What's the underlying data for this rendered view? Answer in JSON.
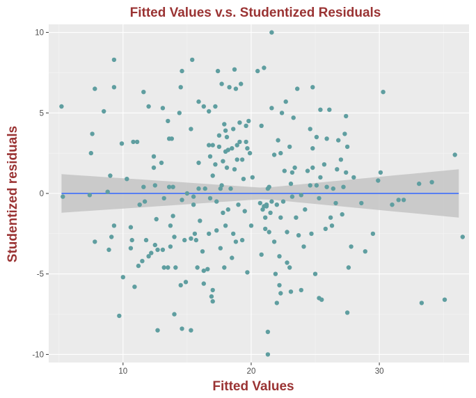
{
  "chart_data": {
    "type": "scatter",
    "title": "Fitted Values v.s. Studentized Residuals",
    "xlabel": "Fitted Values",
    "ylabel": "Studentized residuals",
    "xlim": [
      4.2,
      37.0
    ],
    "ylim": [
      -10.5,
      10.5
    ],
    "x_ticks": [
      10,
      20,
      30
    ],
    "y_ticks": [
      -10,
      -5,
      0,
      5,
      10
    ],
    "x_tick_labels": [
      "10",
      "20",
      "30"
    ],
    "y_tick_labels": [
      "-10",
      "-5",
      "0",
      "5",
      "10"
    ],
    "grid": true,
    "legend": "none",
    "colors": {
      "panel_bg": "#ebebeb",
      "grid_major": "#ffffff",
      "grid_minor": "#f5f5f5",
      "points": "#5f9ea0",
      "fit_line": "#3366ff",
      "ribbon": "#c4c4c4",
      "title": "#9a3333",
      "tick_text": "#4d4d4d"
    },
    "fit_line": {
      "x": [
        5.2,
        36.2
      ],
      "y": [
        0,
        0
      ]
    },
    "confidence_band": {
      "x": [
        5.2,
        21,
        36.2
      ],
      "upper": [
        1.2,
        0.35,
        1.5
      ],
      "lower": [
        -1.2,
        -0.35,
        -1.5
      ]
    },
    "points": [
      {
        "x": 5.2,
        "y": 5.4
      },
      {
        "x": 5.3,
        "y": -0.2
      },
      {
        "x": 7.4,
        "y": -0.1
      },
      {
        "x": 7.5,
        "y": 2.5
      },
      {
        "x": 7.6,
        "y": 3.7
      },
      {
        "x": 7.8,
        "y": 6.5
      },
      {
        "x": 7.8,
        "y": -3.0
      },
      {
        "x": 8.5,
        "y": 5.1
      },
      {
        "x": 8.8,
        "y": 0.1
      },
      {
        "x": 9.0,
        "y": 1.1
      },
      {
        "x": 8.9,
        "y": -3.5
      },
      {
        "x": 9.1,
        "y": -2.7
      },
      {
        "x": 9.3,
        "y": -2.0
      },
      {
        "x": 9.3,
        "y": 6.6
      },
      {
        "x": 9.3,
        "y": 8.3
      },
      {
        "x": 9.7,
        "y": -7.6
      },
      {
        "x": 9.9,
        "y": 3.1
      },
      {
        "x": 10.0,
        "y": -5.2
      },
      {
        "x": 10.3,
        "y": 0.9
      },
      {
        "x": 10.6,
        "y": -2.1
      },
      {
        "x": 10.6,
        "y": -3.4
      },
      {
        "x": 10.7,
        "y": -2.9
      },
      {
        "x": 10.8,
        "y": 3.2
      },
      {
        "x": 10.9,
        "y": -5.8
      },
      {
        "x": 11.1,
        "y": 3.2
      },
      {
        "x": 11.2,
        "y": -4.5
      },
      {
        "x": 11.3,
        "y": -0.7
      },
      {
        "x": 11.5,
        "y": -4.2
      },
      {
        "x": 11.6,
        "y": 6.3
      },
      {
        "x": 11.6,
        "y": 0.4
      },
      {
        "x": 11.7,
        "y": -0.5
      },
      {
        "x": 11.8,
        "y": -2.9
      },
      {
        "x": 12.0,
        "y": 5.4
      },
      {
        "x": 12.0,
        "y": -3.9
      },
      {
        "x": 12.2,
        "y": -3.7
      },
      {
        "x": 12.4,
        "y": 2.3
      },
      {
        "x": 12.4,
        "y": 1.6
      },
      {
        "x": 12.5,
        "y": -3.2
      },
      {
        "x": 12.5,
        "y": 0.5
      },
      {
        "x": 12.6,
        "y": -1.6
      },
      {
        "x": 12.7,
        "y": -3.5
      },
      {
        "x": 12.7,
        "y": -8.5
      },
      {
        "x": 13.0,
        "y": 1.9
      },
      {
        "x": 13.1,
        "y": 5.3
      },
      {
        "x": 13.1,
        "y": -3.5
      },
      {
        "x": 13.2,
        "y": -4.6
      },
      {
        "x": 13.2,
        "y": -0.3
      },
      {
        "x": 13.5,
        "y": 4.5
      },
      {
        "x": 13.5,
        "y": -4.6
      },
      {
        "x": 13.6,
        "y": 3.4
      },
      {
        "x": 13.6,
        "y": 0.4
      },
      {
        "x": 13.7,
        "y": -3.3
      },
      {
        "x": 13.7,
        "y": -2.0
      },
      {
        "x": 13.8,
        "y": 3.4
      },
      {
        "x": 13.9,
        "y": -1.4
      },
      {
        "x": 13.9,
        "y": 0.4
      },
      {
        "x": 14.0,
        "y": -2.7
      },
      {
        "x": 14.0,
        "y": -7.5
      },
      {
        "x": 14.1,
        "y": -4.6
      },
      {
        "x": 14.4,
        "y": 5.0
      },
      {
        "x": 14.5,
        "y": 6.6
      },
      {
        "x": 14.5,
        "y": -5.7
      },
      {
        "x": 14.6,
        "y": 7.6
      },
      {
        "x": 14.6,
        "y": -0.4
      },
      {
        "x": 14.6,
        "y": -8.4
      },
      {
        "x": 14.8,
        "y": -2.9
      },
      {
        "x": 14.9,
        "y": -5.5
      },
      {
        "x": 15.0,
        "y": 0.0
      },
      {
        "x": 15.3,
        "y": 4.0
      },
      {
        "x": 15.3,
        "y": -2.8
      },
      {
        "x": 15.3,
        "y": -8.5
      },
      {
        "x": 15.4,
        "y": 8.3
      },
      {
        "x": 15.5,
        "y": -0.2
      },
      {
        "x": 15.5,
        "y": -0.7
      },
      {
        "x": 15.6,
        "y": -2.5
      },
      {
        "x": 15.7,
        "y": -2.9
      },
      {
        "x": 15.8,
        "y": -4.6
      },
      {
        "x": 15.9,
        "y": 0.3
      },
      {
        "x": 15.9,
        "y": 1.9
      },
      {
        "x": 15.9,
        "y": 5.7
      },
      {
        "x": 16.0,
        "y": -1.7
      },
      {
        "x": 16.2,
        "y": -3.6
      },
      {
        "x": 16.3,
        "y": -4.8
      },
      {
        "x": 16.3,
        "y": -5.6
      },
      {
        "x": 16.3,
        "y": 5.4
      },
      {
        "x": 16.4,
        "y": 0.3
      },
      {
        "x": 16.6,
        "y": -4.7
      },
      {
        "x": 16.7,
        "y": 5.1
      },
      {
        "x": 16.7,
        "y": -2.5
      },
      {
        "x": 16.7,
        "y": 3.0
      },
      {
        "x": 16.8,
        "y": 2.3
      },
      {
        "x": 16.8,
        "y": -0.3
      },
      {
        "x": 16.9,
        "y": -6.4
      },
      {
        "x": 17.0,
        "y": -6.7
      },
      {
        "x": 17.0,
        "y": -6.0
      },
      {
        "x": 17.0,
        "y": 1.1
      },
      {
        "x": 17.0,
        "y": 3.0
      },
      {
        "x": 17.2,
        "y": 1.8
      },
      {
        "x": 17.2,
        "y": 5.4
      },
      {
        "x": 17.3,
        "y": -0.5
      },
      {
        "x": 17.3,
        "y": -2.3
      },
      {
        "x": 17.4,
        "y": 7.6
      },
      {
        "x": 17.5,
        "y": 2.9
      },
      {
        "x": 17.5,
        "y": 3.6
      },
      {
        "x": 17.6,
        "y": -3.4
      },
      {
        "x": 17.6,
        "y": 0.3
      },
      {
        "x": 17.7,
        "y": 6.8
      },
      {
        "x": 17.7,
        "y": 0.5
      },
      {
        "x": 17.8,
        "y": 2.0
      },
      {
        "x": 17.8,
        "y": -1.2
      },
      {
        "x": 17.9,
        "y": 4.3
      },
      {
        "x": 17.9,
        "y": -4.6
      },
      {
        "x": 18.0,
        "y": -2.0
      },
      {
        "x": 18.0,
        "y": 3.9
      },
      {
        "x": 18.0,
        "y": 2.6
      },
      {
        "x": 18.1,
        "y": 1.6
      },
      {
        "x": 18.1,
        "y": 3.5
      },
      {
        "x": 18.2,
        "y": -1.0
      },
      {
        "x": 18.2,
        "y": 2.7
      },
      {
        "x": 18.3,
        "y": 6.6
      },
      {
        "x": 18.4,
        "y": 0.3
      },
      {
        "x": 18.5,
        "y": -4.0
      },
      {
        "x": 18.5,
        "y": 2.8
      },
      {
        "x": 18.6,
        "y": -2.5
      },
      {
        "x": 18.6,
        "y": 4.0
      },
      {
        "x": 18.7,
        "y": 7.7
      },
      {
        "x": 18.7,
        "y": 1.5
      },
      {
        "x": 18.8,
        "y": -3.0
      },
      {
        "x": 18.8,
        "y": 6.5
      },
      {
        "x": 18.9,
        "y": 3.0
      },
      {
        "x": 18.9,
        "y": 2.1
      },
      {
        "x": 19.0,
        "y": -0.7
      },
      {
        "x": 19.1,
        "y": 3.2
      },
      {
        "x": 19.1,
        "y": 4.4
      },
      {
        "x": 19.2,
        "y": 6.8
      },
      {
        "x": 19.3,
        "y": -2.9
      },
      {
        "x": 19.3,
        "y": 2.1
      },
      {
        "x": 19.4,
        "y": 0.9
      },
      {
        "x": 19.5,
        "y": -1.1
      },
      {
        "x": 19.6,
        "y": 4.2
      },
      {
        "x": 19.6,
        "y": 3.2
      },
      {
        "x": 19.7,
        "y": -4.9
      },
      {
        "x": 19.7,
        "y": 2.8
      },
      {
        "x": 19.8,
        "y": 4.5
      },
      {
        "x": 19.9,
        "y": 2.5
      },
      {
        "x": 20.0,
        "y": -2.0
      },
      {
        "x": 20.1,
        "y": 1.0
      },
      {
        "x": 20.5,
        "y": 7.6
      },
      {
        "x": 20.7,
        "y": -0.6
      },
      {
        "x": 20.8,
        "y": -3.8
      },
      {
        "x": 20.8,
        "y": 4.2
      },
      {
        "x": 20.9,
        "y": -1.0
      },
      {
        "x": 21.0,
        "y": 7.8
      },
      {
        "x": 21.0,
        "y": -0.8
      },
      {
        "x": 21.1,
        "y": -1.5
      },
      {
        "x": 21.1,
        "y": -2.2
      },
      {
        "x": 21.2,
        "y": -0.8
      },
      {
        "x": 21.2,
        "y": -0.7
      },
      {
        "x": 21.3,
        "y": 0.3
      },
      {
        "x": 21.3,
        "y": -8.6
      },
      {
        "x": 21.3,
        "y": -10.0
      },
      {
        "x": 21.4,
        "y": 0.4
      },
      {
        "x": 21.4,
        "y": -2.4
      },
      {
        "x": 21.5,
        "y": -1.2
      },
      {
        "x": 21.6,
        "y": 10.0
      },
      {
        "x": 21.6,
        "y": 5.3
      },
      {
        "x": 21.6,
        "y": -0.5
      },
      {
        "x": 21.8,
        "y": -3.0
      },
      {
        "x": 21.8,
        "y": 2.4
      },
      {
        "x": 21.9,
        "y": -5.0
      },
      {
        "x": 22.0,
        "y": -0.7
      },
      {
        "x": 22.0,
        "y": -6.8
      },
      {
        "x": 22.1,
        "y": 3.3
      },
      {
        "x": 22.2,
        "y": -5.7
      },
      {
        "x": 22.2,
        "y": -3.9
      },
      {
        "x": 22.3,
        "y": -6.2
      },
      {
        "x": 22.3,
        "y": 2.5
      },
      {
        "x": 22.3,
        "y": -1.5
      },
      {
        "x": 22.4,
        "y": 5.0
      },
      {
        "x": 22.5,
        "y": -0.5
      },
      {
        "x": 22.6,
        "y": 1.4
      },
      {
        "x": 22.7,
        "y": 5.7
      },
      {
        "x": 22.8,
        "y": -4.3
      },
      {
        "x": 22.8,
        "y": -2.4
      },
      {
        "x": 23.0,
        "y": 2.9
      },
      {
        "x": 23.0,
        "y": -4.6
      },
      {
        "x": 23.1,
        "y": -6.1
      },
      {
        "x": 23.1,
        "y": 0.6
      },
      {
        "x": 23.2,
        "y": 1.3
      },
      {
        "x": 23.2,
        "y": -0.2
      },
      {
        "x": 23.3,
        "y": 4.7
      },
      {
        "x": 23.4,
        "y": 1.6
      },
      {
        "x": 23.5,
        "y": -1.5
      },
      {
        "x": 23.6,
        "y": 6.5
      },
      {
        "x": 23.7,
        "y": -2.6
      },
      {
        "x": 23.9,
        "y": -0.1
      },
      {
        "x": 23.9,
        "y": -6.0
      },
      {
        "x": 24.1,
        "y": -3.3
      },
      {
        "x": 24.2,
        "y": -1.0
      },
      {
        "x": 24.4,
        "y": 1.4
      },
      {
        "x": 24.6,
        "y": 4.0
      },
      {
        "x": 24.6,
        "y": 0.5
      },
      {
        "x": 24.7,
        "y": -2.5
      },
      {
        "x": 24.8,
        "y": 6.6
      },
      {
        "x": 24.8,
        "y": 1.6
      },
      {
        "x": 24.8,
        "y": 2.8
      },
      {
        "x": 25.0,
        "y": -5.0
      },
      {
        "x": 25.1,
        "y": 3.5
      },
      {
        "x": 25.1,
        "y": 0.5
      },
      {
        "x": 25.3,
        "y": -0.3
      },
      {
        "x": 25.3,
        "y": -6.5
      },
      {
        "x": 25.4,
        "y": 5.2
      },
      {
        "x": 25.4,
        "y": 1.0
      },
      {
        "x": 25.5,
        "y": -6.6
      },
      {
        "x": 25.7,
        "y": 1.8
      },
      {
        "x": 25.8,
        "y": -2.2
      },
      {
        "x": 25.9,
        "y": 0.4
      },
      {
        "x": 25.9,
        "y": 3.4
      },
      {
        "x": 26.1,
        "y": 5.2
      },
      {
        "x": 26.2,
        "y": -1.5
      },
      {
        "x": 26.3,
        "y": -2.0
      },
      {
        "x": 26.4,
        "y": 0.3
      },
      {
        "x": 26.6,
        "y": -0.6
      },
      {
        "x": 26.7,
        "y": 1.5
      },
      {
        "x": 26.8,
        "y": 3.3
      },
      {
        "x": 27.0,
        "y": 2.1
      },
      {
        "x": 27.1,
        "y": -1.3
      },
      {
        "x": 27.2,
        "y": 0.4
      },
      {
        "x": 27.3,
        "y": 3.7
      },
      {
        "x": 27.4,
        "y": 1.3
      },
      {
        "x": 27.4,
        "y": 4.8
      },
      {
        "x": 27.5,
        "y": 2.9
      },
      {
        "x": 27.5,
        "y": -7.4
      },
      {
        "x": 27.6,
        "y": -4.6
      },
      {
        "x": 27.8,
        "y": -3.3
      },
      {
        "x": 28.0,
        "y": 1.0
      },
      {
        "x": 28.6,
        "y": -0.6
      },
      {
        "x": 28.9,
        "y": -3.6
      },
      {
        "x": 29.5,
        "y": -2.5
      },
      {
        "x": 29.9,
        "y": 0.8
      },
      {
        "x": 30.1,
        "y": 1.3
      },
      {
        "x": 30.3,
        "y": 6.3
      },
      {
        "x": 31.0,
        "y": -0.7
      },
      {
        "x": 31.5,
        "y": -0.4
      },
      {
        "x": 31.9,
        "y": -0.4
      },
      {
        "x": 33.1,
        "y": 0.6
      },
      {
        "x": 33.3,
        "y": -6.8
      },
      {
        "x": 34.1,
        "y": 0.7
      },
      {
        "x": 35.1,
        "y": -6.6
      },
      {
        "x": 35.9,
        "y": 2.4
      },
      {
        "x": 36.5,
        "y": -2.7
      }
    ]
  }
}
